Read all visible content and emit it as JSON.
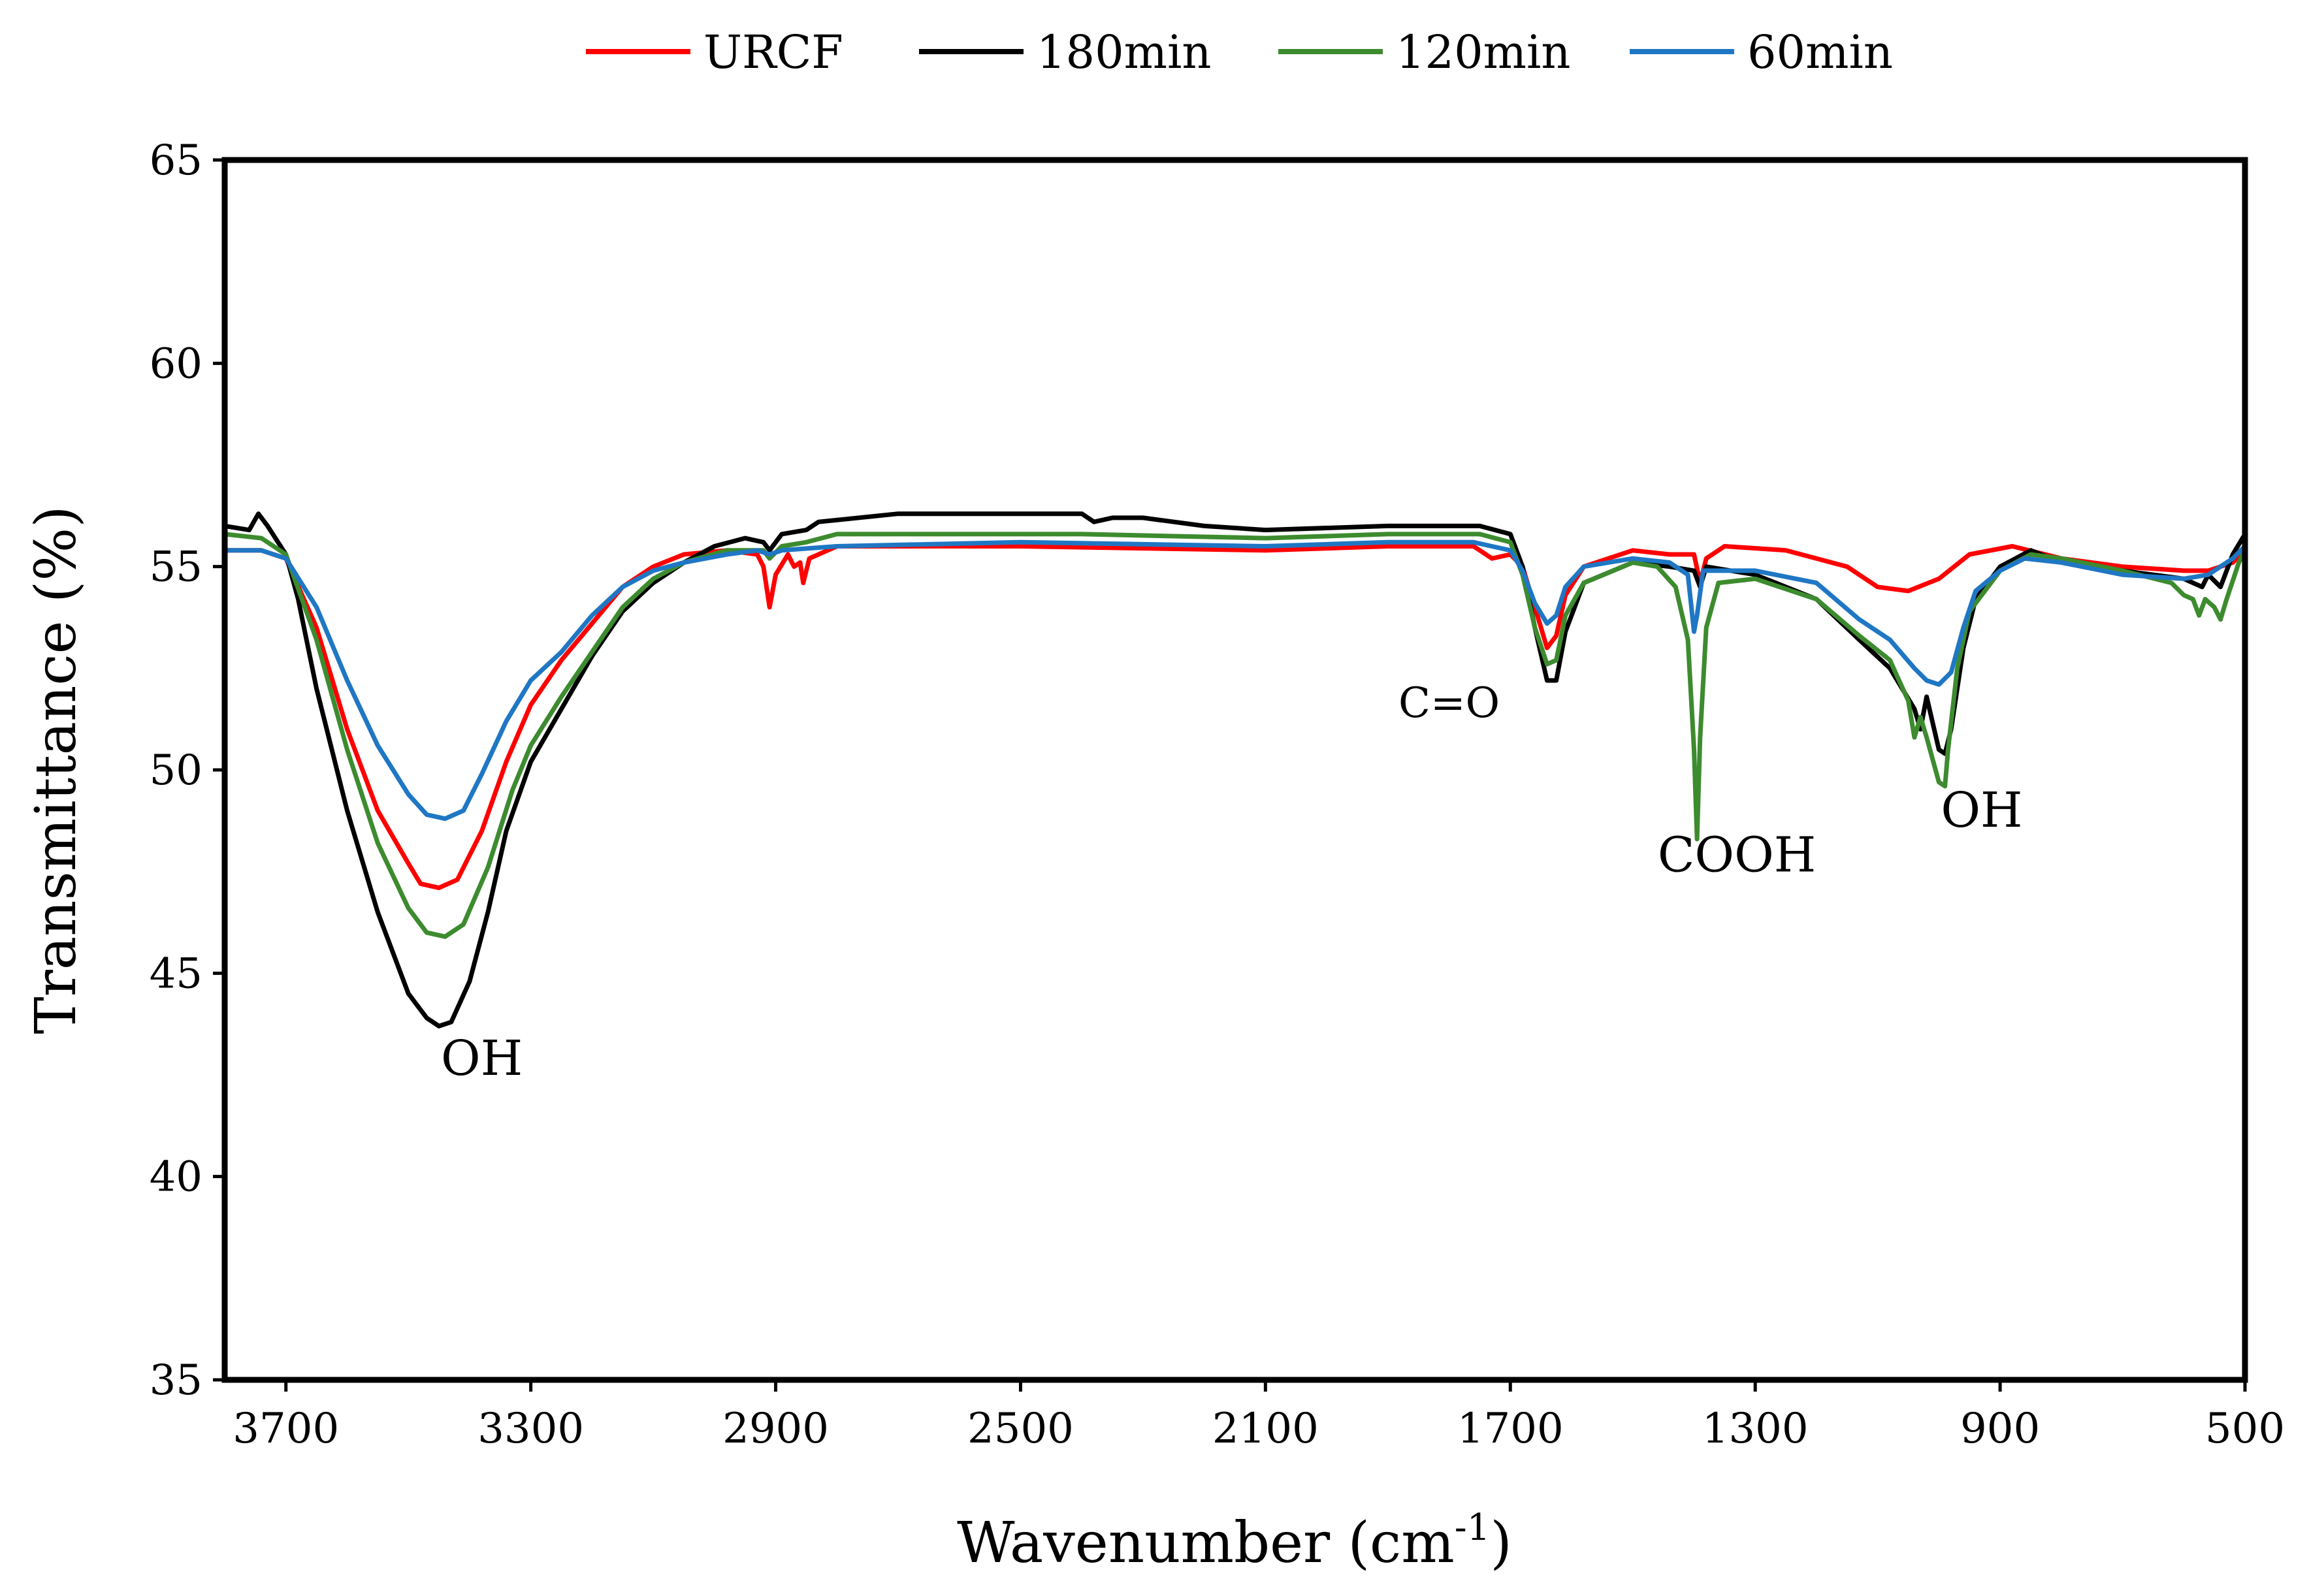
{
  "chart_data": {
    "type": "line",
    "title": "",
    "xlabel": "Wavenumber (cm",
    "xlabel_sup": "-1",
    "xlabel_close": ")",
    "ylabel": "Transmittance (%)",
    "xlim": [
      3800,
      500
    ],
    "ylim": [
      35,
      65
    ],
    "x_ticks": [
      3700,
      3300,
      2900,
      2500,
      2100,
      1700,
      1300,
      900,
      500
    ],
    "y_ticks": [
      35,
      40,
      45,
      50,
      55,
      60,
      65
    ],
    "x_tick_labels": [
      "3700",
      "3300",
      "2900",
      "2500",
      "2100",
      "1700",
      "1300",
      "900",
      "500"
    ],
    "y_tick_labels": [
      "35",
      "40",
      "45",
      "50",
      "55",
      "60",
      "65"
    ],
    "legend_position": "top",
    "series": [
      {
        "name": "URCF",
        "color": "#ff0000",
        "points": [
          [
            3800,
            55.4
          ],
          [
            3740,
            55.4
          ],
          [
            3700,
            55.2
          ],
          [
            3650,
            53.5
          ],
          [
            3600,
            51.0
          ],
          [
            3550,
            49.0
          ],
          [
            3500,
            47.7
          ],
          [
            3480,
            47.2
          ],
          [
            3450,
            47.1
          ],
          [
            3420,
            47.3
          ],
          [
            3380,
            48.5
          ],
          [
            3340,
            50.2
          ],
          [
            3300,
            51.6
          ],
          [
            3250,
            52.7
          ],
          [
            3200,
            53.6
          ],
          [
            3150,
            54.5
          ],
          [
            3100,
            55.0
          ],
          [
            3050,
            55.3
          ],
          [
            2980,
            55.4
          ],
          [
            2930,
            55.3
          ],
          [
            2920,
            55.0
          ],
          [
            2910,
            54.0
          ],
          [
            2900,
            54.8
          ],
          [
            2880,
            55.3
          ],
          [
            2870,
            55.0
          ],
          [
            2860,
            55.1
          ],
          [
            2855,
            54.6
          ],
          [
            2845,
            55.2
          ],
          [
            2800,
            55.5
          ],
          [
            2500,
            55.5
          ],
          [
            2100,
            55.4
          ],
          [
            1900,
            55.5
          ],
          [
            1760,
            55.5
          ],
          [
            1730,
            55.2
          ],
          [
            1700,
            55.3
          ],
          [
            1680,
            55.0
          ],
          [
            1660,
            54.0
          ],
          [
            1640,
            53.0
          ],
          [
            1625,
            53.3
          ],
          [
            1610,
            54.3
          ],
          [
            1580,
            55.0
          ],
          [
            1500,
            55.4
          ],
          [
            1440,
            55.3
          ],
          [
            1400,
            55.3
          ],
          [
            1390,
            54.6
          ],
          [
            1380,
            55.2
          ],
          [
            1350,
            55.5
          ],
          [
            1250,
            55.4
          ],
          [
            1150,
            55.0
          ],
          [
            1100,
            54.5
          ],
          [
            1050,
            54.4
          ],
          [
            1000,
            54.7
          ],
          [
            950,
            55.3
          ],
          [
            880,
            55.5
          ],
          [
            800,
            55.2
          ],
          [
            700,
            55.0
          ],
          [
            600,
            54.9
          ],
          [
            560,
            54.9
          ],
          [
            520,
            55.1
          ],
          [
            500,
            55.4
          ]
        ]
      },
      {
        "name": "180min",
        "color": "#000000",
        "points": [
          [
            3800,
            56.0
          ],
          [
            3760,
            55.9
          ],
          [
            3745,
            56.3
          ],
          [
            3730,
            56.0
          ],
          [
            3700,
            55.3
          ],
          [
            3680,
            54.2
          ],
          [
            3650,
            52.0
          ],
          [
            3600,
            49.0
          ],
          [
            3550,
            46.5
          ],
          [
            3500,
            44.5
          ],
          [
            3470,
            43.9
          ],
          [
            3450,
            43.7
          ],
          [
            3430,
            43.8
          ],
          [
            3400,
            44.8
          ],
          [
            3370,
            46.5
          ],
          [
            3340,
            48.5
          ],
          [
            3300,
            50.2
          ],
          [
            3250,
            51.5
          ],
          [
            3200,
            52.8
          ],
          [
            3150,
            53.9
          ],
          [
            3100,
            54.6
          ],
          [
            3050,
            55.1
          ],
          [
            3000,
            55.5
          ],
          [
            2950,
            55.7
          ],
          [
            2920,
            55.6
          ],
          [
            2910,
            55.4
          ],
          [
            2890,
            55.8
          ],
          [
            2850,
            55.9
          ],
          [
            2830,
            56.1
          ],
          [
            2700,
            56.3
          ],
          [
            2400,
            56.3
          ],
          [
            2380,
            56.1
          ],
          [
            2350,
            56.2
          ],
          [
            2300,
            56.2
          ],
          [
            2200,
            56.0
          ],
          [
            2100,
            55.9
          ],
          [
            1900,
            56.0
          ],
          [
            1750,
            56.0
          ],
          [
            1700,
            55.8
          ],
          [
            1680,
            55.0
          ],
          [
            1660,
            53.5
          ],
          [
            1640,
            52.2
          ],
          [
            1625,
            52.2
          ],
          [
            1610,
            53.4
          ],
          [
            1580,
            54.6
          ],
          [
            1500,
            55.1
          ],
          [
            1440,
            55.0
          ],
          [
            1400,
            54.9
          ],
          [
            1390,
            54.5
          ],
          [
            1380,
            55.0
          ],
          [
            1300,
            54.8
          ],
          [
            1200,
            54.2
          ],
          [
            1130,
            53.2
          ],
          [
            1080,
            52.5
          ],
          [
            1040,
            51.5
          ],
          [
            1030,
            51.0
          ],
          [
            1020,
            51.8
          ],
          [
            1000,
            50.5
          ],
          [
            990,
            50.4
          ],
          [
            980,
            51.0
          ],
          [
            960,
            53.0
          ],
          [
            940,
            54.2
          ],
          [
            900,
            55.0
          ],
          [
            850,
            55.4
          ],
          [
            800,
            55.1
          ],
          [
            700,
            54.9
          ],
          [
            600,
            54.7
          ],
          [
            570,
            54.5
          ],
          [
            560,
            54.8
          ],
          [
            540,
            54.5
          ],
          [
            520,
            55.3
          ],
          [
            500,
            55.8
          ]
        ]
      },
      {
        "name": "120min",
        "color": "#3d8b2f",
        "points": [
          [
            3800,
            55.8
          ],
          [
            3740,
            55.7
          ],
          [
            3700,
            55.3
          ],
          [
            3650,
            53.2
          ],
          [
            3600,
            50.5
          ],
          [
            3550,
            48.2
          ],
          [
            3500,
            46.6
          ],
          [
            3470,
            46.0
          ],
          [
            3440,
            45.9
          ],
          [
            3410,
            46.2
          ],
          [
            3370,
            47.6
          ],
          [
            3330,
            49.5
          ],
          [
            3300,
            50.6
          ],
          [
            3250,
            51.8
          ],
          [
            3200,
            52.9
          ],
          [
            3150,
            54.0
          ],
          [
            3100,
            54.7
          ],
          [
            3050,
            55.1
          ],
          [
            2980,
            55.4
          ],
          [
            2920,
            55.4
          ],
          [
            2910,
            55.2
          ],
          [
            2890,
            55.5
          ],
          [
            2850,
            55.6
          ],
          [
            2800,
            55.8
          ],
          [
            2500,
            55.8
          ],
          [
            2400,
            55.8
          ],
          [
            2100,
            55.7
          ],
          [
            1900,
            55.8
          ],
          [
            1750,
            55.8
          ],
          [
            1700,
            55.6
          ],
          [
            1680,
            54.8
          ],
          [
            1660,
            53.5
          ],
          [
            1640,
            52.6
          ],
          [
            1625,
            52.7
          ],
          [
            1610,
            53.8
          ],
          [
            1580,
            54.6
          ],
          [
            1500,
            55.1
          ],
          [
            1460,
            55.0
          ],
          [
            1430,
            54.5
          ],
          [
            1410,
            53.2
          ],
          [
            1400,
            50.5
          ],
          [
            1395,
            48.3
          ],
          [
            1390,
            50.8
          ],
          [
            1380,
            53.5
          ],
          [
            1360,
            54.6
          ],
          [
            1300,
            54.7
          ],
          [
            1200,
            54.2
          ],
          [
            1130,
            53.3
          ],
          [
            1080,
            52.7
          ],
          [
            1050,
            51.7
          ],
          [
            1040,
            50.8
          ],
          [
            1030,
            51.3
          ],
          [
            1020,
            50.8
          ],
          [
            1000,
            49.7
          ],
          [
            990,
            49.6
          ],
          [
            985,
            50.5
          ],
          [
            970,
            52.5
          ],
          [
            950,
            53.9
          ],
          [
            900,
            54.9
          ],
          [
            850,
            55.3
          ],
          [
            800,
            55.2
          ],
          [
            700,
            54.9
          ],
          [
            620,
            54.6
          ],
          [
            600,
            54.3
          ],
          [
            585,
            54.2
          ],
          [
            575,
            53.8
          ],
          [
            565,
            54.2
          ],
          [
            550,
            54.0
          ],
          [
            540,
            53.7
          ],
          [
            530,
            54.2
          ],
          [
            510,
            55.1
          ],
          [
            500,
            55.4
          ]
        ]
      },
      {
        "name": "60min",
        "color": "#1f77c4",
        "points": [
          [
            3800,
            55.4
          ],
          [
            3740,
            55.4
          ],
          [
            3700,
            55.2
          ],
          [
            3650,
            54.0
          ],
          [
            3600,
            52.2
          ],
          [
            3550,
            50.6
          ],
          [
            3500,
            49.4
          ],
          [
            3470,
            48.9
          ],
          [
            3440,
            48.8
          ],
          [
            3410,
            49.0
          ],
          [
            3380,
            49.9
          ],
          [
            3340,
            51.2
          ],
          [
            3300,
            52.2
          ],
          [
            3250,
            52.9
          ],
          [
            3200,
            53.8
          ],
          [
            3150,
            54.5
          ],
          [
            3100,
            54.9
          ],
          [
            3050,
            55.1
          ],
          [
            2980,
            55.3
          ],
          [
            2930,
            55.4
          ],
          [
            2910,
            55.3
          ],
          [
            2890,
            55.4
          ],
          [
            2800,
            55.5
          ],
          [
            2500,
            55.6
          ],
          [
            2100,
            55.5
          ],
          [
            1900,
            55.6
          ],
          [
            1760,
            55.6
          ],
          [
            1700,
            55.4
          ],
          [
            1680,
            54.9
          ],
          [
            1660,
            54.1
          ],
          [
            1640,
            53.6
          ],
          [
            1625,
            53.8
          ],
          [
            1610,
            54.5
          ],
          [
            1580,
            55.0
          ],
          [
            1500,
            55.2
          ],
          [
            1440,
            55.1
          ],
          [
            1410,
            54.8
          ],
          [
            1400,
            53.4
          ],
          [
            1395,
            53.8
          ],
          [
            1385,
            54.9
          ],
          [
            1300,
            54.9
          ],
          [
            1200,
            54.6
          ],
          [
            1130,
            53.7
          ],
          [
            1080,
            53.2
          ],
          [
            1040,
            52.5
          ],
          [
            1020,
            52.2
          ],
          [
            1000,
            52.1
          ],
          [
            980,
            52.4
          ],
          [
            960,
            53.5
          ],
          [
            940,
            54.4
          ],
          [
            900,
            54.9
          ],
          [
            860,
            55.2
          ],
          [
            800,
            55.1
          ],
          [
            700,
            54.8
          ],
          [
            600,
            54.7
          ],
          [
            560,
            54.8
          ],
          [
            520,
            55.2
          ],
          [
            500,
            55.5
          ]
        ]
      }
    ],
    "annotations": [
      {
        "text": "OH",
        "x": 3380,
        "y": 42.5,
        "style": "large"
      },
      {
        "text": "C=O",
        "x": 1800,
        "y": 51.3,
        "style": "small"
      },
      {
        "text": "COOH",
        "x": 1330,
        "y": 47.5,
        "style": "large"
      },
      {
        "text": "OH",
        "x": 930,
        "y": 48.6,
        "style": "large"
      }
    ]
  }
}
